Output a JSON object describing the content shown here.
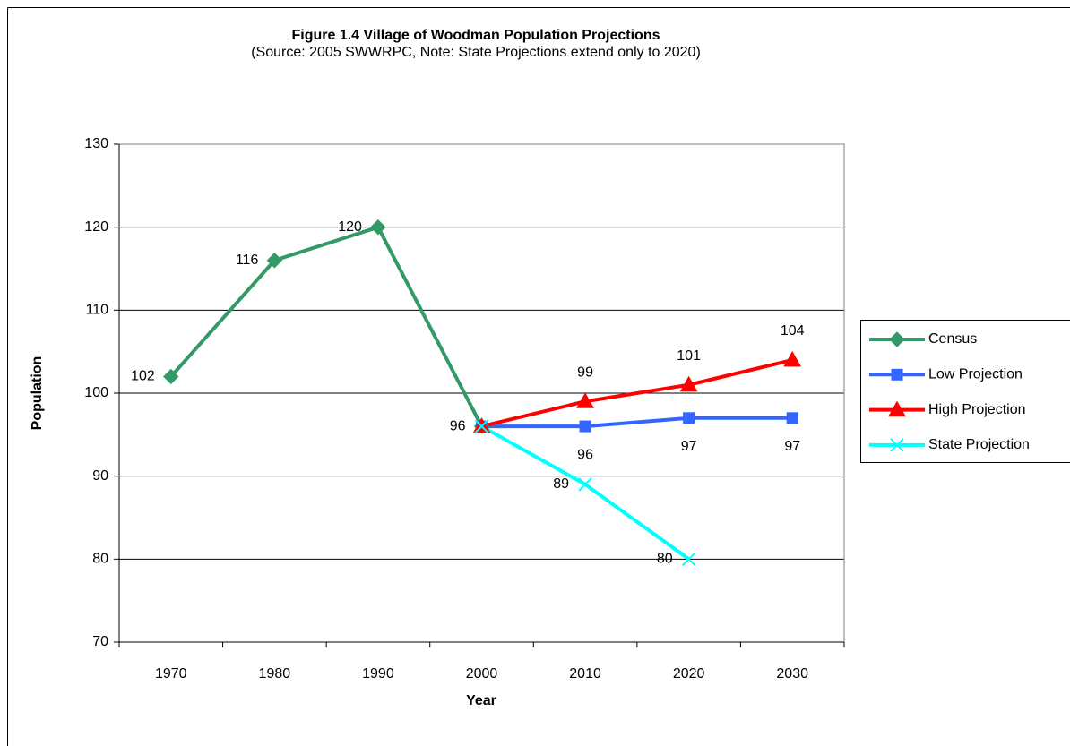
{
  "chart_data": {
    "type": "line",
    "title": "Figure 1.4 Village of Woodman Population Projections",
    "subtitle": "(Source:  2005 SWWRPC, Note:  State Projections extend only to 2020)",
    "x_label": "Year",
    "y_label": "Population",
    "categories": [
      "1970",
      "1980",
      "1990",
      "2000",
      "2010",
      "2020",
      "2030"
    ],
    "series": [
      {
        "name": "Census",
        "color": "#339966",
        "marker": "diamond",
        "values": [
          102,
          116,
          120,
          96,
          null,
          null,
          null
        ]
      },
      {
        "name": "Low Projection",
        "color": "#3366ff",
        "marker": "square",
        "values": [
          null,
          null,
          null,
          96,
          96,
          97,
          97
        ]
      },
      {
        "name": "High Projection",
        "color": "#ff0000",
        "marker": "triangle",
        "values": [
          null,
          null,
          null,
          96,
          99,
          101,
          104
        ]
      },
      {
        "name": "State Projection",
        "color": "#00ffff",
        "marker": "x",
        "values": [
          null,
          null,
          null,
          96,
          89,
          80,
          null
        ]
      }
    ],
    "ylim": [
      70,
      130
    ],
    "yticks": [
      70,
      80,
      90,
      100,
      110,
      120,
      130
    ],
    "grid": true,
    "legend": "right"
  }
}
